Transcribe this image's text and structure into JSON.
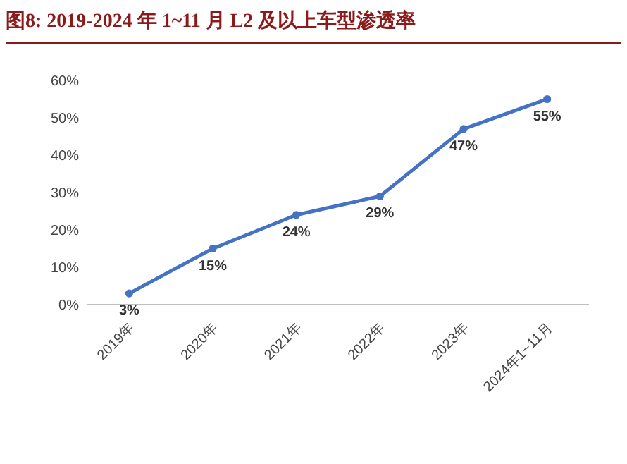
{
  "chart_data": {
    "type": "line",
    "title": "图8:  2019-2024 年 1~11 月 L2 及以上车型渗透率",
    "categories": [
      "2019年",
      "2020年",
      "2021年",
      "2022年",
      "2023年",
      "2024年1~11月"
    ],
    "series": [
      {
        "color": "#4472c4",
        "values": [
          3,
          15,
          24,
          29,
          47,
          55
        ],
        "value_labels": [
          "3%",
          "15%",
          "24%",
          "29%",
          "47%",
          "55%"
        ]
      }
    ],
    "ylim": [
      0,
      60
    ],
    "yticks": [
      {
        "value": 0,
        "label": "0%"
      },
      {
        "value": 10,
        "label": "10%"
      },
      {
        "value": 20,
        "label": "20%"
      },
      {
        "value": 30,
        "label": "30%"
      },
      {
        "value": 40,
        "label": "40%"
      },
      {
        "value": 50,
        "label": "50%"
      },
      {
        "value": 60,
        "label": "60%"
      }
    ],
    "marker": "circle",
    "grid": false
  }
}
